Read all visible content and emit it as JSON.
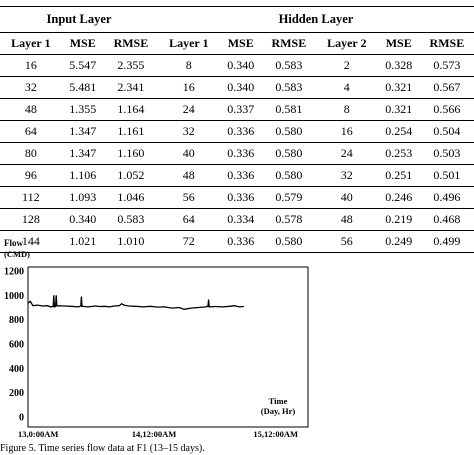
{
  "table": {
    "group_headers": {
      "input_layer": "Input Layer",
      "hidden_layer": "Hidden Layer"
    },
    "columns": [
      "Layer 1",
      "MSE",
      "RMSE",
      "Layer 1",
      "MSE",
      "RMSE",
      "Layer 2",
      "MSE",
      "RMSE"
    ],
    "rows": [
      [
        "16",
        "5.547",
        "2.355",
        "8",
        "0.340",
        "0.583",
        "2",
        "0.328",
        "0.573"
      ],
      [
        "32",
        "5.481",
        "2.341",
        "16",
        "0.340",
        "0.583",
        "4",
        "0.321",
        "0.567"
      ],
      [
        "48",
        "1.355",
        "1.164",
        "24",
        "0.337",
        "0.581",
        "8",
        "0.321",
        "0.566"
      ],
      [
        "64",
        "1.347",
        "1.161",
        "32",
        "0.336",
        "0.580",
        "16",
        "0.254",
        "0.504"
      ],
      [
        "80",
        "1.347",
        "1.160",
        "40",
        "0.336",
        "0.580",
        "24",
        "0.253",
        "0.503"
      ],
      [
        "96",
        "1.106",
        "1.052",
        "48",
        "0.336",
        "0.580",
        "32",
        "0.251",
        "0.501"
      ],
      [
        "112",
        "1.093",
        "1.046",
        "56",
        "0.336",
        "0.579",
        "40",
        "0.246",
        "0.496"
      ],
      [
        "128",
        "0.340",
        "0.583",
        "64",
        "0.334",
        "0.578",
        "48",
        "0.219",
        "0.468"
      ],
      [
        "144",
        "1.021",
        "1.010",
        "72",
        "0.336",
        "0.580",
        "56",
        "0.249",
        "0.499"
      ]
    ]
  },
  "chart_data": {
    "type": "line",
    "ylabel": "Flow",
    "yunit": "(CMD)",
    "xlabel": "Time",
    "xunit": "(Day, Hr)",
    "ylim": [
      0,
      1200
    ],
    "yticks": [
      "0",
      "200",
      "400",
      "600",
      "800",
      "1000",
      "1200"
    ],
    "xtick_labels": [
      "13,0:00AM",
      "14,12:00AM",
      "15,12:00AM"
    ],
    "xlim": [
      0,
      2
    ],
    "grid": false,
    "series": [
      {
        "color": "#000000",
        "points": [
          [
            0.0,
            935
          ],
          [
            0.02,
            950
          ],
          [
            0.04,
            915
          ],
          [
            0.08,
            920
          ],
          [
            0.12,
            912
          ],
          [
            0.16,
            915
          ],
          [
            0.19,
            905
          ],
          [
            0.21,
            910
          ],
          [
            0.215,
            1000
          ],
          [
            0.22,
            905
          ],
          [
            0.23,
            910
          ],
          [
            0.235,
            1000
          ],
          [
            0.24,
            915
          ],
          [
            0.3,
            912
          ],
          [
            0.36,
            910
          ],
          [
            0.42,
            905
          ],
          [
            0.44,
            912
          ],
          [
            0.445,
            990
          ],
          [
            0.45,
            910
          ],
          [
            0.5,
            905
          ],
          [
            0.56,
            912
          ],
          [
            0.6,
            908
          ],
          [
            0.64,
            910
          ],
          [
            0.68,
            905
          ],
          [
            0.72,
            912
          ],
          [
            0.76,
            915
          ],
          [
            0.78,
            930
          ],
          [
            0.8,
            920
          ],
          [
            0.84,
            912
          ],
          [
            0.9,
            910
          ],
          [
            0.96,
            905
          ],
          [
            1.02,
            910
          ],
          [
            1.08,
            903
          ],
          [
            1.14,
            905
          ],
          [
            1.2,
            895
          ],
          [
            1.26,
            900
          ],
          [
            1.3,
            885
          ],
          [
            1.36,
            895
          ],
          [
            1.42,
            900
          ],
          [
            1.48,
            905
          ],
          [
            1.5,
            910
          ],
          [
            1.505,
            965
          ],
          [
            1.51,
            905
          ],
          [
            1.56,
            908
          ],
          [
            1.62,
            905
          ],
          [
            1.68,
            910
          ],
          [
            1.72,
            915
          ],
          [
            1.76,
            905
          ],
          [
            1.8,
            908
          ]
        ]
      }
    ]
  },
  "caption": "Figure 5. Time series flow data at F1 (13–15 days)."
}
